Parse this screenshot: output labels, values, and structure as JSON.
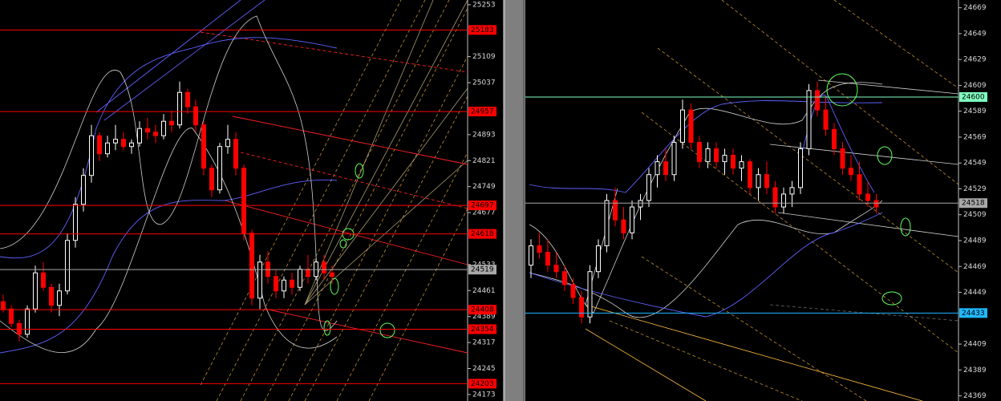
{
  "chart_data": [
    {
      "type": "candlestick",
      "ylim": [
        24155,
        25266
      ],
      "yticks": [
        25253,
        25109,
        25037,
        24893,
        24821,
        24749,
        24677,
        24533,
        24461,
        24389,
        24317,
        24245,
        24173
      ],
      "up_color": "#ffffff",
      "down_color": "#ff0000",
      "levels": [
        {
          "value": 25183,
          "color": "#ff0000"
        },
        {
          "value": 24957,
          "color": "#ff0000"
        },
        {
          "value": 24697,
          "color": "#ff0000"
        },
        {
          "value": 24618,
          "color": "#ff0000"
        },
        {
          "value": 24519,
          "color": "#a8a8a8"
        },
        {
          "value": 24408,
          "color": "#ff0000"
        },
        {
          "value": 24354,
          "color": "#ff0000"
        },
        {
          "value": 24203,
          "color": "#ff0000"
        }
      ],
      "open": [
        24430,
        24410,
        24370,
        24340,
        24410,
        24510,
        24470,
        24420,
        24460,
        24600,
        24700,
        24780,
        24890,
        24840,
        24870,
        24880,
        24860,
        24870,
        24910,
        24900,
        24890,
        24930,
        24920,
        25010,
        24970,
        24920,
        24800,
        24740,
        24860,
        24880,
        24800,
        24620,
        24440,
        24540,
        24500,
        24460,
        24490,
        24470,
        24520,
        24500,
        24540,
        24510
      ],
      "high": [
        24450,
        24420,
        24380,
        24420,
        24530,
        24540,
        24480,
        24480,
        24620,
        24720,
        24800,
        24920,
        24900,
        24890,
        24920,
        24900,
        24880,
        24930,
        24940,
        24920,
        24950,
        24960,
        25040,
        25020,
        24990,
        24930,
        24810,
        24870,
        24920,
        24900,
        24810,
        24630,
        24560,
        24570,
        24520,
        24500,
        24510,
        24530,
        24560,
        24550,
        24560,
        24530
      ],
      "low": [
        24400,
        24360,
        24320,
        24330,
        24400,
        24460,
        24400,
        24390,
        24450,
        24580,
        24680,
        24760,
        24820,
        24830,
        24850,
        24850,
        24840,
        24860,
        24880,
        24870,
        24880,
        24900,
        24910,
        24950,
        24900,
        24780,
        24720,
        24730,
        24840,
        24780,
        24600,
        24420,
        24410,
        24480,
        24440,
        24440,
        24450,
        24460,
        24480,
        24490,
        24490,
        24480
      ],
      "close": [
        24410,
        24370,
        24340,
        24410,
        24510,
        24470,
        24420,
        24460,
        24600,
        24700,
        24780,
        24890,
        24840,
        24870,
        24880,
        24860,
        24870,
        24910,
        24900,
        24890,
        24930,
        24920,
        25010,
        24970,
        24920,
        24800,
        24740,
        24860,
        24880,
        24800,
        24620,
        24440,
        24540,
        24500,
        24460,
        24490,
        24470,
        24520,
        24500,
        24540,
        24510,
        24500
      ]
    },
    {
      "type": "candlestick",
      "ylim": [
        24365,
        24675
      ],
      "yticks": [
        24669,
        24649,
        24629,
        24609,
        24589,
        24569,
        24549,
        24529,
        24509,
        24489,
        24469,
        24449,
        24409,
        24389,
        24369
      ],
      "up_color": "#ffffff",
      "down_color": "#ff0000",
      "levels": [
        {
          "value": 24600,
          "color": "#80ffc0"
        },
        {
          "value": 24518,
          "color": "#a8a8a8"
        },
        {
          "value": 24433,
          "color": "#20b8ff"
        }
      ],
      "open": [
        24470,
        24485,
        24480,
        24470,
        24465,
        24455,
        24445,
        24430,
        24465,
        24485,
        24520,
        24505,
        24495,
        24515,
        24520,
        24540,
        24550,
        24540,
        24565,
        24590,
        24565,
        24550,
        24560,
        24550,
        24555,
        24545,
        24550,
        24530,
        24540,
        24530,
        24515,
        24525,
        24530,
        24560,
        24605,
        24590,
        24575,
        24560,
        24545,
        24540,
        24525,
        24520
      ],
      "high": [
        24490,
        24495,
        24490,
        24480,
        24470,
        24460,
        24450,
        24470,
        24490,
        24525,
        24530,
        24515,
        24520,
        24525,
        24545,
        24555,
        24560,
        24570,
        24598,
        24595,
        24570,
        24565,
        24565,
        24560,
        24560,
        24555,
        24552,
        24545,
        24550,
        24535,
        24530,
        24535,
        24565,
        24610,
        24612,
        24600,
        24580,
        24565,
        24555,
        24550,
        24535,
        24525
      ],
      "low": [
        24460,
        24475,
        24465,
        24460,
        24450,
        24440,
        24425,
        24425,
        24460,
        24480,
        24500,
        24490,
        24490,
        24505,
        24515,
        24530,
        24535,
        24535,
        24560,
        24560,
        24545,
        24545,
        24545,
        24540,
        24540,
        24535,
        24525,
        24520,
        24525,
        24510,
        24510,
        24515,
        24525,
        24555,
        24585,
        24570,
        24555,
        24540,
        24535,
        24520,
        24515,
        24510
      ],
      "close": [
        24485,
        24480,
        24470,
        24465,
        24455,
        24445,
        24430,
        24465,
        24485,
        24520,
        24505,
        24495,
        24515,
        24520,
        24540,
        24550,
        24540,
        24565,
        24590,
        24565,
        24550,
        24560,
        24550,
        24555,
        24545,
        24550,
        24530,
        24540,
        24530,
        24515,
        24525,
        24530,
        24560,
        24605,
        24590,
        24575,
        24560,
        24545,
        24540,
        24525,
        24520,
        24515
      ]
    }
  ]
}
